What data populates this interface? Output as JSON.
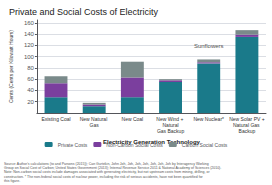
{
  "chart_data": {
    "type": "bar",
    "stacked": true,
    "title": "Private and Social Costs of Electricity",
    "xlabel": "Electricity Generation Technology",
    "ylabel": "Cents (Cents per Kilowatt Hours)",
    "categories": [
      "Existing Coal",
      "New Natural Gas",
      "New Coal",
      "New Wind + Natural\nGas Backup",
      "New Nuclear*",
      "New Solar PV +\nNatural Gas Backup"
    ],
    "series": [
      {
        "name": "Private Costs",
        "color": "#1a7a8a",
        "values": [
          28,
          12,
          28,
          55,
          88,
          135
        ]
      },
      {
        "name": "Non-Carbon Social Costs",
        "color": "#7b3f9e",
        "values": [
          25,
          3,
          35,
          3,
          2,
          4
        ]
      },
      {
        "name": "Carbon Social Costs",
        "color": "#7a8a8a",
        "values": [
          12,
          3,
          28,
          2,
          5,
          8
        ]
      }
    ],
    "annotations": [
      {
        "text": "Sunflowers",
        "category": "New Nuclear*"
      }
    ],
    "note": "Source: Author's calculations (to and Parsons (2015)); Can Gurtekin, John Joh, Joh, Joh, Joh, Joh, Joh, Joh by Interagency Working Group on Social Cost of Carbon; United States Government (2013); Internal Revenue Service 2011 & National Academy of Sciences (2010).\nNote: Non-carbon social costs include damages associated with generating electricity, but not upstream costs from mining, drilling, or construction. * The non-federal social costs of nuclear power, including the risk of serious accidents, have not been quantified for this figure.",
    "ylim": [
      0,
      165
    ],
    "yticks": [
      20,
      40,
      60,
      80,
      100,
      120,
      140,
      160
    ],
    "grid": true,
    "legend": "bottom"
  }
}
